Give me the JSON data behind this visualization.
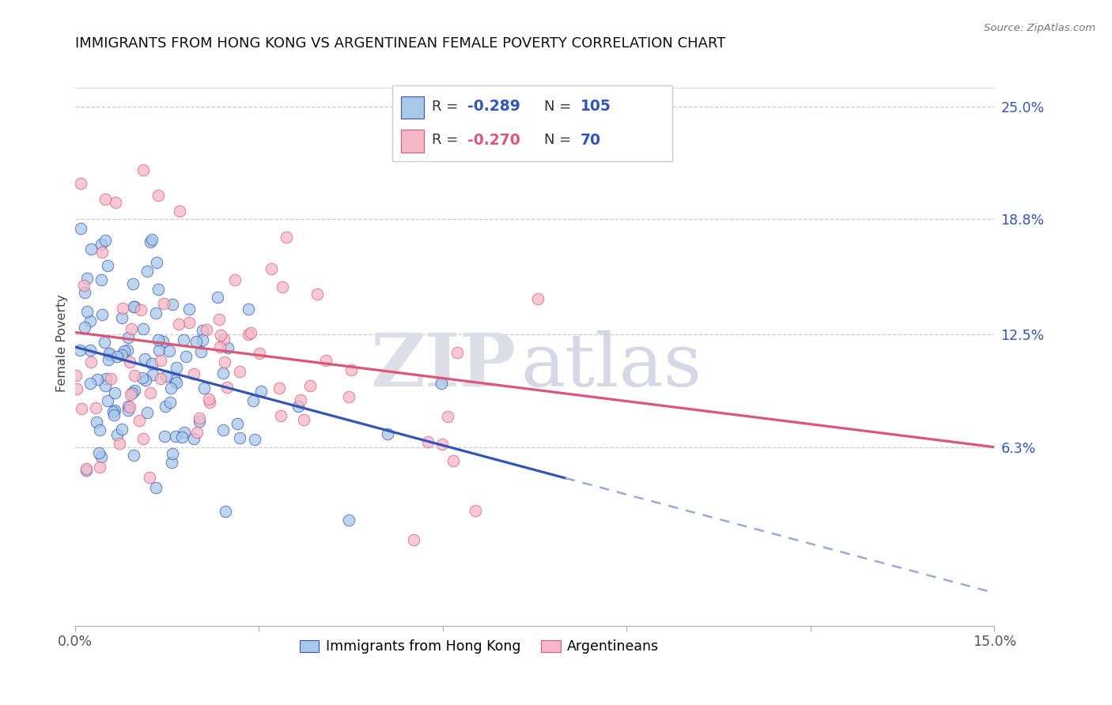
{
  "title": "IMMIGRANTS FROM HONG KONG VS ARGENTINEAN FEMALE POVERTY CORRELATION CHART",
  "source": "Source: ZipAtlas.com",
  "ylabel": "Female Poverty",
  "ytick_labels": [
    "25.0%",
    "18.8%",
    "12.5%",
    "6.3%"
  ],
  "ytick_values": [
    0.25,
    0.188,
    0.125,
    0.063
  ],
  "xmin": 0.0,
  "xmax": 0.15,
  "ymin": -0.035,
  "ymax": 0.275,
  "color_blue": "#a8c8e8",
  "color_pink": "#f4b8c8",
  "color_blue_line": "#3355bb",
  "color_pink_line": "#dd5577",
  "color_dashed": "#99aadd",
  "hk_n": 105,
  "arg_n": 70,
  "hk_seed": 42,
  "arg_seed": 77
}
